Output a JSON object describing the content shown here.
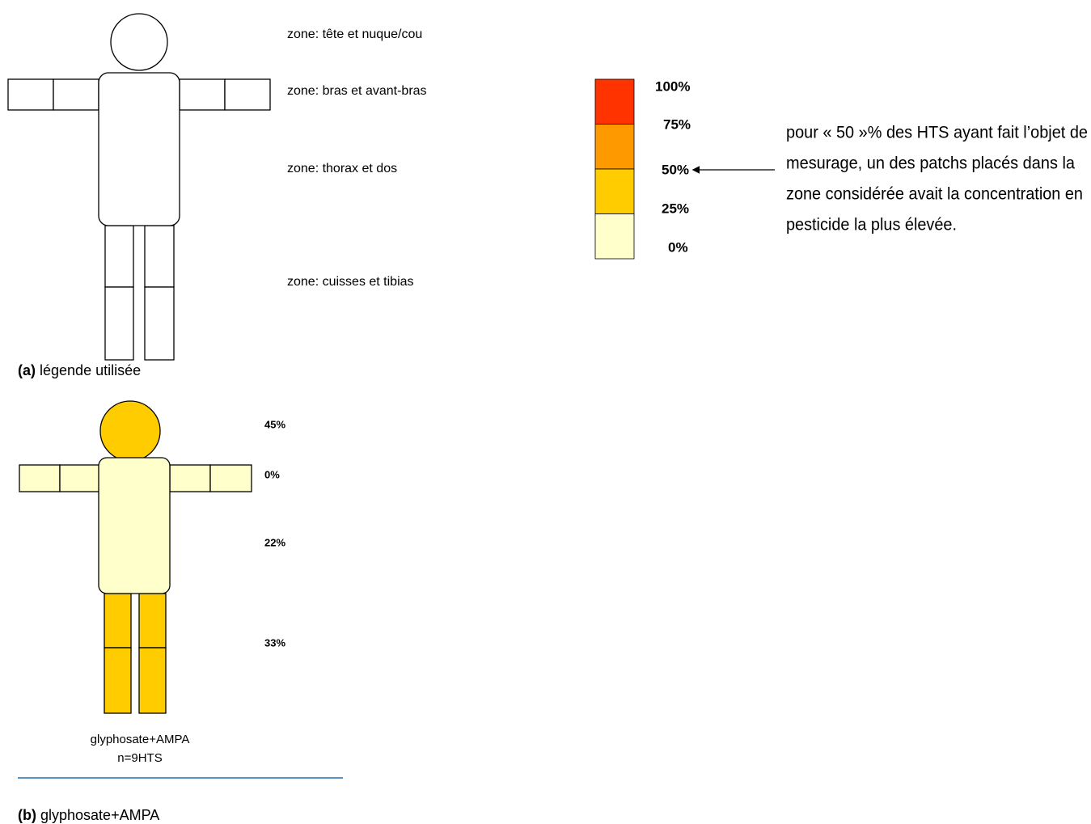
{
  "legend_figure": {
    "zones": [
      "zone: tête et nuque/cou",
      "zone: bras et avant-bras",
      "zone: thorax et dos",
      "zone: cuisses et tibias"
    ],
    "scale": [
      {
        "label": "100%",
        "color": "#ff3300"
      },
      {
        "label": "75%",
        "color": "#ff9900"
      },
      {
        "label": "50%",
        "color": "#ffcc00"
      },
      {
        "label": "25%",
        "color": "#ffffcc"
      },
      {
        "label": "0%"
      }
    ],
    "annotation": [
      "pour « 50 »% des HTS ayant fait l’objet de",
      "mesurage, un des patchs placés dans la",
      "zone considérée avait la concentration en",
      "pesticide la plus élevée."
    ],
    "caption": {
      "tag": "(a)",
      "text": "légende utilisée"
    }
  },
  "result_figure": {
    "zones": [
      {
        "label": "45%",
        "color": "#ffcc00"
      },
      {
        "label": "0%",
        "color": "#ffffcc"
      },
      {
        "label": "22%",
        "color": "#ffffcc"
      },
      {
        "label": "33%",
        "color": "#ffcc00"
      }
    ],
    "name": "glyphosate+AMPA",
    "n": "n=9HTS",
    "caption": {
      "tag": "(b)",
      "text": "glyphosate+AMPA"
    }
  }
}
